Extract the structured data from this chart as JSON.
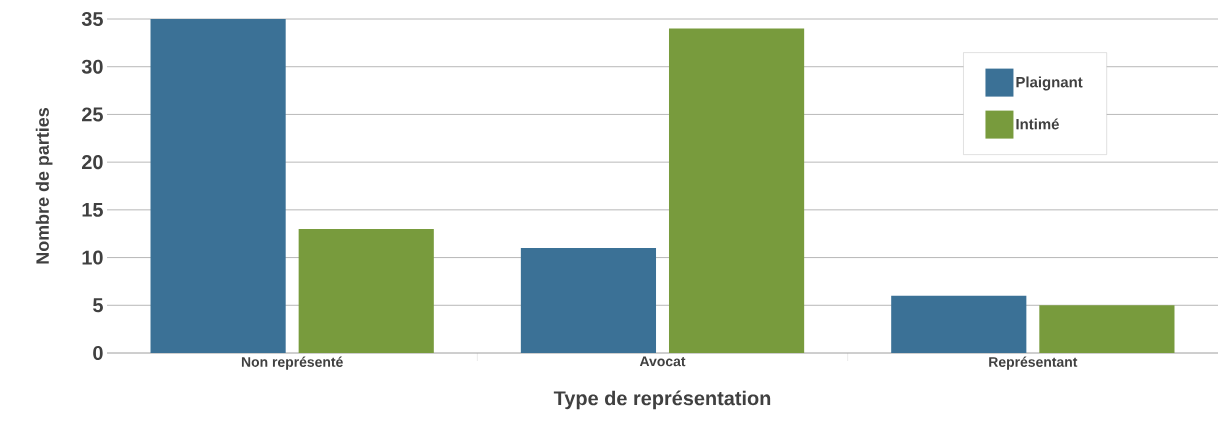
{
  "chart_data": {
    "type": "bar",
    "xlabel": "Type de représentation",
    "ylabel": "Nombre de parties",
    "categories": [
      "Non représenté",
      "Avocat",
      "Représentant"
    ],
    "series": [
      {
        "name": "Plaignant",
        "color": "#3b7196",
        "values": [
          35,
          11,
          6
        ]
      },
      {
        "name": "Intimé",
        "color": "#789b3d",
        "values": [
          13,
          34,
          5
        ]
      }
    ],
    "ylim": [
      0,
      35
    ],
    "yticks": [
      0,
      5,
      10,
      15,
      20,
      25,
      30,
      35
    ],
    "grid": "y",
    "legend": "top right"
  }
}
